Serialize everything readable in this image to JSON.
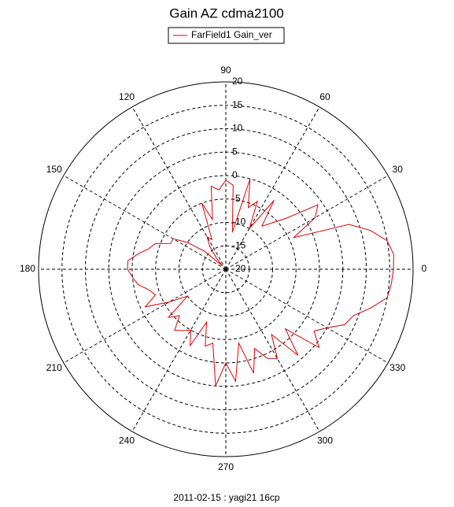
{
  "chart_data": {
    "type": "polar",
    "title": "Gain AZ cdma2100",
    "footer": "2011-02-15 : yagi21 16cp",
    "theta": [
      0,
      5,
      10,
      15,
      20,
      25,
      30,
      35,
      40,
      45,
      50,
      55,
      60,
      65,
      70,
      75,
      80,
      85,
      90,
      95,
      100,
      105,
      110,
      115,
      120,
      125,
      130,
      135,
      140,
      145,
      150,
      155,
      160,
      165,
      170,
      175,
      180,
      185,
      190,
      195,
      200,
      205,
      210,
      215,
      220,
      225,
      230,
      235,
      240,
      245,
      250,
      255,
      260,
      265,
      270,
      275,
      280,
      285,
      290,
      295,
      300,
      305,
      310,
      315,
      320,
      325,
      330,
      335,
      340,
      345,
      350,
      355
    ],
    "series": [
      {
        "name": "FarField1 Gain_ver",
        "color": "#e00000",
        "values": [
          15.8,
          16,
          15,
          12,
          8,
          -4,
          2,
          4,
          -3,
          -6,
          -8,
          -2,
          -10,
          -4,
          -6,
          0,
          -12,
          -2,
          -1,
          -3,
          -2,
          -9,
          -5,
          -13,
          -12,
          -14,
          -17,
          -19,
          -14,
          -10,
          -7,
          -7,
          -4,
          -3,
          -1,
          1,
          1,
          0,
          -1,
          -3,
          -4,
          -1,
          -6,
          -10,
          -4,
          -6,
          -3,
          -4,
          -5,
          -2,
          -8,
          -3,
          -4,
          5,
          0,
          4,
          -4,
          3,
          -2,
          1,
          2,
          -3,
          4,
          -2,
          6,
          3,
          5,
          8,
          9,
          12,
          15,
          15.5
        ]
      }
    ],
    "rlim": [
      -20,
      20
    ],
    "rticks": [
      -20,
      -15,
      -10,
      -5,
      0,
      5,
      10,
      15,
      20
    ],
    "thetaticks": [
      0,
      30,
      60,
      90,
      120,
      150,
      180,
      210,
      240,
      270,
      300,
      330
    ],
    "grid": true
  }
}
